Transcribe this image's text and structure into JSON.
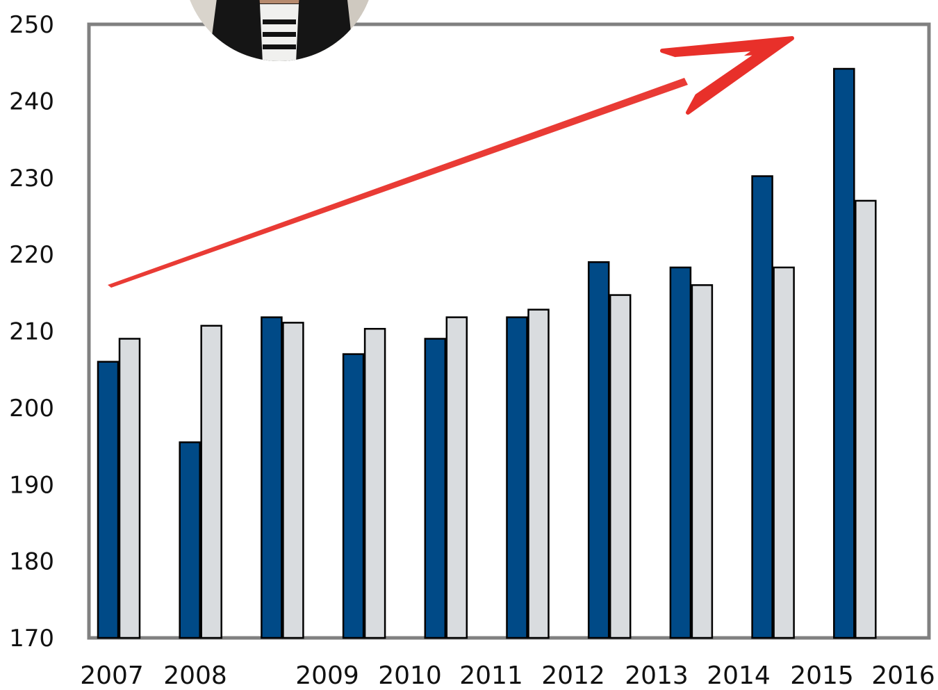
{
  "chart_data": {
    "type": "bar",
    "title": "",
    "xlabel": "",
    "ylabel": "",
    "ylim": [
      170,
      250
    ],
    "yticks": [
      170,
      180,
      190,
      200,
      210,
      220,
      230,
      240,
      250
    ],
    "x_tick_labels": [
      "2007",
      "2008",
      "2009",
      "2010",
      "2011",
      "2012",
      "2013",
      "2014",
      "2015",
      "2016"
    ],
    "groups": 10,
    "series": [
      {
        "color": "#004a87",
        "values": [
          206,
          195.5,
          211.8,
          207,
          209,
          211.8,
          219,
          218.3,
          230.2,
          244.2
        ]
      },
      {
        "color": "#d9dcdf",
        "values": [
          209,
          210.7,
          211.1,
          210.3,
          211.8,
          212.8,
          214.7,
          216,
          218.3,
          227
        ]
      }
    ],
    "grid": false,
    "legend": "none",
    "annotation": {
      "type": "arrow",
      "color": "#e8302a",
      "direction": "upward trend"
    },
    "inset_photo": {
      "shape": "circle",
      "content": "portrait"
    }
  }
}
